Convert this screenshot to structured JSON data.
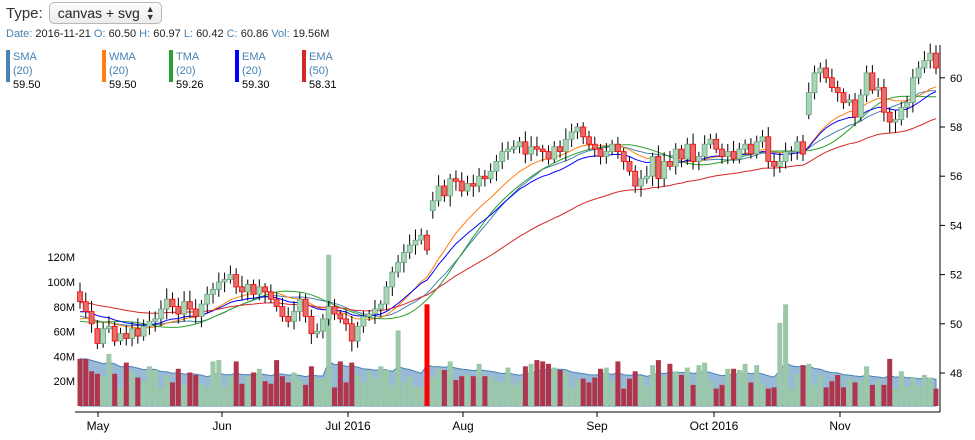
{
  "controls": {
    "type_label": "Type:",
    "type_select_value": "canvas + svg"
  },
  "ohlc_bar": {
    "date_label": "Date:",
    "date": "2016-11-21",
    "open_label": "O:",
    "open": "60.50",
    "high_label": "H:",
    "high": "60.97",
    "low_label": "L:",
    "low": "60.42",
    "close_label": "C:",
    "close": "60.86",
    "vol_label": "Vol:",
    "vol": "19.56M"
  },
  "indicators": [
    {
      "name": "SMA (20)",
      "value": "59.50",
      "color": "#4682b4"
    },
    {
      "name": "WMA (20)",
      "value": "59.50",
      "color": "#ff7f0e"
    },
    {
      "name": "TMA (20)",
      "value": "59.26",
      "color": "#2ca02c"
    },
    {
      "name": "EMA (20)",
      "value": "59.30",
      "color": "#0000ff"
    },
    {
      "name": "EMA (50)",
      "value": "58.31",
      "color": "#d62728"
    }
  ],
  "colors": {
    "candle_up": "#6ba583",
    "candle_up_fill": "#a8d5b5",
    "candle_down": "#ff0000",
    "candle_down_fill": "#e26d6d",
    "volume_up": "#9bc9a8",
    "volume_down": "#b0344a",
    "volume_spike": "#ff0000",
    "volume_area": "#4682b4"
  },
  "chart_data": {
    "type": "candlestick",
    "title": "",
    "xlabel": "",
    "ylabel": "",
    "x_tick_labels": [
      "May",
      "Jun",
      "Jul 2016",
      "Aug",
      "Sep",
      "Oct 2016",
      "Nov"
    ],
    "price_axis": {
      "ylim": [
        47,
        62
      ],
      "tick_labels": [
        "48",
        "50",
        "52",
        "54",
        "56",
        "58",
        "60"
      ],
      "position": "right"
    },
    "volume_axis": {
      "tick_labels": [
        "20M",
        "40M",
        "60M",
        "80M",
        "100M",
        "120M"
      ],
      "position": "left"
    },
    "price_series": {
      "x_start_label": "2016-04-25",
      "close": [
        50.9,
        50.5,
        50.0,
        49.2,
        49.8,
        49.9,
        49.3,
        49.6,
        49.4,
        49.8,
        49.5,
        49.9,
        50.1,
        50.2,
        50.6,
        51.0,
        50.7,
        50.4,
        50.9,
        50.6,
        50.3,
        50.8,
        51.2,
        51.4,
        51.7,
        51.8,
        52.0,
        51.5,
        51.3,
        51.6,
        51.2,
        51.5,
        51.3,
        51.0,
        50.7,
        50.3,
        50.1,
        50.5,
        51.0,
        50.3,
        49.6,
        49.7,
        50.2,
        50.7,
        50.4,
        50.2,
        50.0,
        49.3,
        49.9,
        50.3,
        50.4,
        50.6,
        50.8,
        51.5,
        52.1,
        52.5,
        52.9,
        53.2,
        53.4,
        53.6,
        53.0,
        55.0,
        55.6,
        55.2,
        55.9,
        55.8,
        55.4,
        55.7,
        55.6,
        56.0,
        55.9,
        56.2,
        56.6,
        57.0,
        57.1,
        57.2,
        57.4,
        56.9,
        57.2,
        57.1,
        57.0,
        56.7,
        57.2,
        57.0,
        57.5,
        57.8,
        58.0,
        57.6,
        57.3,
        57.1,
        56.8,
        57.0,
        57.3,
        57.0,
        56.6,
        56.2,
        55.6,
        55.9,
        56.0,
        56.8,
        55.9,
        56.6,
        56.4,
        57.1,
        56.7,
        57.3,
        56.6,
        56.8,
        57.3,
        57.5,
        57.1,
        56.8,
        57.0,
        56.7,
        57.1,
        57.3,
        56.9,
        57.4,
        57.6,
        56.6,
        56.4,
        56.6,
        57.0,
        57.0,
        57.4,
        56.9,
        59.4,
        60.2,
        60.4,
        60.0,
        59.6,
        59.4,
        59.0,
        59.1,
        58.4,
        59.3,
        60.2,
        59.5,
        59.6,
        58.6,
        58.2,
        58.3,
        58.8,
        59.0,
        60.0,
        60.4,
        60.7,
        61.0,
        60.4
      ],
      "open": [
        51.3,
        50.9,
        50.5,
        49.8,
        49.2,
        49.8,
        49.9,
        49.3,
        49.6,
        49.4,
        49.8,
        49.5,
        49.9,
        50.1,
        50.2,
        50.6,
        51.0,
        50.7,
        50.4,
        50.9,
        50.6,
        50.3,
        50.8,
        51.2,
        51.4,
        51.7,
        51.8,
        52.0,
        51.5,
        51.3,
        51.6,
        51.2,
        51.5,
        51.3,
        51.0,
        50.7,
        50.3,
        50.1,
        50.5,
        51.0,
        50.3,
        49.6,
        49.7,
        50.2,
        50.7,
        50.4,
        50.2,
        50.0,
        49.3,
        49.9,
        50.3,
        50.4,
        50.6,
        50.8,
        51.5,
        52.1,
        52.5,
        52.9,
        53.2,
        53.4,
        53.6,
        54.6,
        55.0,
        55.6,
        55.2,
        55.9,
        55.8,
        55.4,
        55.7,
        55.6,
        56.0,
        55.9,
        56.2,
        56.6,
        57.0,
        57.1,
        57.2,
        57.4,
        56.9,
        57.2,
        57.1,
        57.0,
        56.7,
        57.2,
        57.0,
        57.5,
        57.8,
        58.0,
        57.6,
        57.3,
        57.1,
        56.8,
        57.0,
        57.3,
        57.0,
        56.6,
        56.2,
        55.6,
        55.9,
        56.0,
        56.8,
        55.9,
        56.6,
        56.4,
        57.1,
        56.7,
        57.3,
        56.6,
        56.8,
        57.3,
        57.5,
        57.1,
        56.8,
        57.0,
        56.7,
        57.1,
        57.3,
        56.9,
        57.4,
        57.6,
        56.6,
        56.4,
        56.6,
        57.0,
        57.0,
        57.4,
        58.5,
        59.4,
        60.2,
        60.4,
        60.0,
        59.6,
        59.4,
        59.0,
        59.1,
        58.4,
        59.3,
        60.2,
        59.5,
        59.6,
        58.6,
        58.2,
        58.3,
        58.8,
        59.0,
        60.0,
        60.4,
        60.7,
        61.0
      ],
      "note": "candle bodies; wicks and indicator lines are derived in the drawing script"
    },
    "annotations": []
  }
}
